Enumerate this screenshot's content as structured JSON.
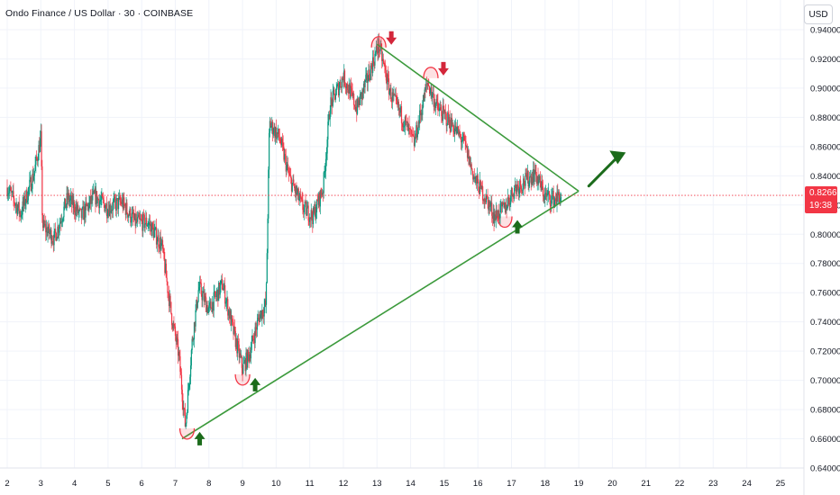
{
  "header": {
    "title": "Ondo Finance / US Dollar · 30 · COINBASE",
    "currency_button": "USD"
  },
  "last_price": {
    "value": "0.82661",
    "countdown": "19:38"
  },
  "colors": {
    "up": "#089981",
    "down": "#f23645",
    "trend": "#3c9a3c",
    "arrow_up": "#1b6b1b",
    "arrow_down": "#d3263a",
    "grid": "#f0f3fa"
  },
  "chart_data": {
    "type": "line",
    "series_type": "candlestick",
    "title": "Ondo Finance / US Dollar · 30 · COINBASE",
    "x_ticks": [
      "2",
      "3",
      "4",
      "5",
      "6",
      "7",
      "8",
      "9",
      "10",
      "11",
      "12",
      "13",
      "14",
      "15",
      "16",
      "17",
      "18",
      "19",
      "20",
      "21",
      "22",
      "23",
      "24",
      "25"
    ],
    "y_ticks": [
      "0.94000",
      "0.92000",
      "0.90000",
      "0.88000",
      "0.86000",
      "0.84000",
      "0.82000",
      "0.80000",
      "0.78000",
      "0.76000",
      "0.74000",
      "0.72000",
      "0.70000",
      "0.68000",
      "0.66000",
      "0.64000"
    ],
    "ylim": [
      0.64,
      0.94
    ],
    "price_path": [
      {
        "x": 2.0,
        "y": 0.832
      },
      {
        "x": 2.4,
        "y": 0.814
      },
      {
        "x": 2.8,
        "y": 0.842
      },
      {
        "x": 3.0,
        "y": 0.866
      },
      {
        "x": 3.05,
        "y": 0.806
      },
      {
        "x": 3.4,
        "y": 0.797
      },
      {
        "x": 3.8,
        "y": 0.825
      },
      {
        "x": 4.2,
        "y": 0.812
      },
      {
        "x": 4.6,
        "y": 0.826
      },
      {
        "x": 5.0,
        "y": 0.818
      },
      {
        "x": 5.4,
        "y": 0.822
      },
      {
        "x": 5.8,
        "y": 0.808
      },
      {
        "x": 6.2,
        "y": 0.808
      },
      {
        "x": 6.6,
        "y": 0.792
      },
      {
        "x": 6.9,
        "y": 0.742
      },
      {
        "x": 7.1,
        "y": 0.718
      },
      {
        "x": 7.3,
        "y": 0.668
      },
      {
        "x": 7.5,
        "y": 0.726
      },
      {
        "x": 7.7,
        "y": 0.764
      },
      {
        "x": 8.0,
        "y": 0.748
      },
      {
        "x": 8.4,
        "y": 0.766
      },
      {
        "x": 8.7,
        "y": 0.736
      },
      {
        "x": 9.0,
        "y": 0.708
      },
      {
        "x": 9.2,
        "y": 0.718
      },
      {
        "x": 9.5,
        "y": 0.744
      },
      {
        "x": 9.7,
        "y": 0.752
      },
      {
        "x": 9.8,
        "y": 0.876
      },
      {
        "x": 10.1,
        "y": 0.866
      },
      {
        "x": 10.4,
        "y": 0.838
      },
      {
        "x": 10.8,
        "y": 0.818
      },
      {
        "x": 11.1,
        "y": 0.812
      },
      {
        "x": 11.4,
        "y": 0.832
      },
      {
        "x": 11.6,
        "y": 0.888
      },
      {
        "x": 12.0,
        "y": 0.908
      },
      {
        "x": 12.4,
        "y": 0.886
      },
      {
        "x": 12.8,
        "y": 0.912
      },
      {
        "x": 13.05,
        "y": 0.93
      },
      {
        "x": 13.4,
        "y": 0.896
      },
      {
        "x": 13.8,
        "y": 0.878
      },
      {
        "x": 14.1,
        "y": 0.862
      },
      {
        "x": 14.5,
        "y": 0.904
      },
      {
        "x": 14.8,
        "y": 0.886
      },
      {
        "x": 15.2,
        "y": 0.876
      },
      {
        "x": 15.6,
        "y": 0.862
      },
      {
        "x": 15.9,
        "y": 0.838
      },
      {
        "x": 16.3,
        "y": 0.822
      },
      {
        "x": 16.5,
        "y": 0.812
      },
      {
        "x": 16.8,
        "y": 0.818
      },
      {
        "x": 17.1,
        "y": 0.832
      },
      {
        "x": 17.4,
        "y": 0.836
      },
      {
        "x": 17.7,
        "y": 0.842
      },
      {
        "x": 18.0,
        "y": 0.826
      },
      {
        "x": 18.3,
        "y": 0.824
      },
      {
        "x": 18.5,
        "y": 0.8266
      }
    ],
    "trendlines": [
      {
        "from": {
          "x": 7.2,
          "y": 0.66
        },
        "to": {
          "x": 19.0,
          "y": 0.8295
        }
      },
      {
        "from": {
          "x": 13.0,
          "y": 0.93
        },
        "to": {
          "x": 19.0,
          "y": 0.8295
        }
      }
    ],
    "breakout_arrow": {
      "from": {
        "x": 19.3,
        "y": 0.833
      },
      "to": {
        "x": 20.4,
        "y": 0.856
      }
    },
    "markers": [
      {
        "kind": "low",
        "x": 7.35,
        "y": 0.661
      },
      {
        "kind": "low",
        "x": 9.0,
        "y": 0.698
      },
      {
        "kind": "low",
        "x": 16.8,
        "y": 0.806
      },
      {
        "kind": "high",
        "x": 13.05,
        "y": 0.934
      },
      {
        "kind": "high",
        "x": 14.6,
        "y": 0.913
      }
    ]
  }
}
